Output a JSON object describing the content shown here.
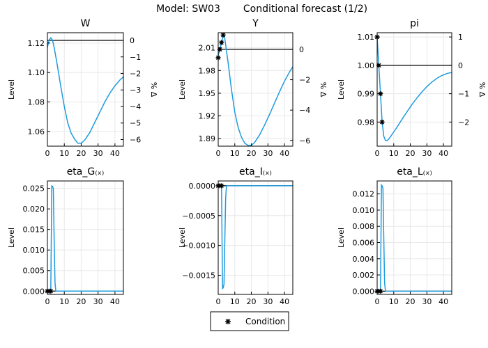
{
  "figure": {
    "model_label": "Model: SW03",
    "forecast_label": "Conditional forecast  (1/2)"
  },
  "legend": {
    "label": "Condition"
  },
  "colors": {
    "series": "#1f9bde",
    "condition": "#000000"
  },
  "chart_data": [
    {
      "type": "line",
      "title": "W",
      "ylabel": "Level",
      "y2label": "% Δ",
      "xlim": [
        0,
        45
      ],
      "ylim": [
        1.05,
        1.127
      ],
      "xticks": [
        0,
        10,
        20,
        30,
        40
      ],
      "yticks": [
        1.06,
        1.08,
        1.1,
        1.12
      ],
      "ytick_labels": [
        "1.06",
        "1.08",
        "1.10",
        "1.12"
      ],
      "y2ticks": [
        0,
        -1,
        -2,
        -3,
        -4,
        -5,
        -6
      ],
      "y2tick_labels": [
        "0",
        "−1",
        "−2",
        "−3",
        "−4",
        "−5",
        "−6"
      ],
      "zero_level": 1.1218,
      "pct_scale": 0.011218,
      "grid": true,
      "series": [
        {
          "x": [
            0,
            1,
            2,
            3,
            4,
            6,
            8,
            10,
            12,
            14,
            16,
            18,
            20,
            22,
            25,
            28,
            31,
            34,
            37,
            40,
            43,
            45
          ],
          "y": [
            1.117,
            1.122,
            1.1235,
            1.122,
            1.117,
            1.104,
            1.09,
            1.077,
            1.066,
            1.059,
            1.055,
            1.052,
            1.052,
            1.054,
            1.059,
            1.066,
            1.073,
            1.08,
            1.086,
            1.091,
            1.095,
            1.097
          ]
        }
      ],
      "conditions": []
    },
    {
      "type": "line",
      "title": "Y",
      "ylabel": "Level",
      "y2label": "% Δ",
      "xlim": [
        0,
        45
      ],
      "ylim": [
        1.88,
        2.03
      ],
      "xticks": [
        0,
        10,
        20,
        30,
        40
      ],
      "yticks": [
        1.89,
        1.92,
        1.95,
        1.98,
        2.01
      ],
      "ytick_labels": [
        "1.89",
        "1.92",
        "1.95",
        "1.98",
        "2.01"
      ],
      "y2ticks": [
        0,
        -2,
        -4,
        -6
      ],
      "y2tick_labels": [
        "0",
        "−2",
        "−4",
        "−6"
      ],
      "zero_level": 2.008,
      "pct_scale": 0.02008,
      "grid": true,
      "series": [
        {
          "x": [
            0,
            1,
            2,
            3,
            4,
            6,
            8,
            10,
            12,
            14,
            16,
            18,
            20,
            22,
            25,
            28,
            31,
            34,
            37,
            40,
            43,
            45
          ],
          "y": [
            2.0,
            2.008,
            2.017,
            2.027,
            2.022,
            1.99,
            1.955,
            1.925,
            1.905,
            1.892,
            1.884,
            1.881,
            1.881,
            1.885,
            1.895,
            1.908,
            1.922,
            1.937,
            1.952,
            1.966,
            1.978,
            1.985
          ]
        }
      ],
      "conditions": [
        {
          "x": [
            0,
            1,
            2,
            3
          ],
          "y": [
            1.997,
            2.008,
            2.017,
            2.027
          ]
        }
      ]
    },
    {
      "type": "line",
      "title": "pi",
      "ylabel": "Level",
      "y2label": "% Δ",
      "xlim": [
        0,
        45
      ],
      "ylim": [
        0.9715,
        1.0115
      ],
      "xticks": [
        0,
        10,
        20,
        30,
        40
      ],
      "yticks": [
        0.98,
        0.99,
        1.0,
        1.01
      ],
      "ytick_labels": [
        "0.98",
        "0.99",
        "1.00",
        "1.01"
      ],
      "y2ticks": [
        1,
        0,
        -1,
        -2
      ],
      "y2tick_labels": [
        "1",
        "0",
        "−1",
        "−2"
      ],
      "zero_level": 1.0,
      "pct_scale": 0.01,
      "grid": true,
      "series": [
        {
          "x": [
            0,
            1,
            2,
            3,
            4,
            5,
            6,
            7,
            8,
            10,
            12,
            15,
            18,
            21,
            24,
            27,
            30,
            33,
            36,
            39,
            42,
            45
          ],
          "y": [
            1.01,
            1.0,
            0.99,
            0.98,
            0.975,
            0.9735,
            0.9735,
            0.974,
            0.9748,
            0.9765,
            0.9782,
            0.981,
            0.9836,
            0.9862,
            0.9885,
            0.9906,
            0.9925,
            0.9941,
            0.9954,
            0.9964,
            0.9971,
            0.9975
          ]
        }
      ],
      "conditions": [
        {
          "x": [
            0,
            1,
            2,
            3
          ],
          "y": [
            1.01,
            1.0,
            0.99,
            0.98
          ]
        }
      ]
    },
    {
      "type": "line",
      "title": "eta_G₍ₓ₎",
      "ylabel": "Level",
      "xlim": [
        0,
        45
      ],
      "ylim": [
        -0.0008,
        0.0268
      ],
      "xticks": [
        0,
        10,
        20,
        30,
        40
      ],
      "yticks": [
        0.0,
        0.005,
        0.01,
        0.015,
        0.02,
        0.025
      ],
      "ytick_labels": [
        "0.000",
        "0.005",
        "0.010",
        "0.015",
        "0.020",
        "0.025"
      ],
      "zero_level": 0,
      "grid": true,
      "series": [
        {
          "x": [
            0,
            1,
            2,
            2.6,
            3,
            3.5,
            4,
            4.5,
            5,
            45
          ],
          "y": [
            0,
            0,
            0,
            0.0256,
            0.0255,
            0.025,
            0.0125,
            0.002,
            0,
            0
          ]
        }
      ],
      "conditions": [
        {
          "x": [
            0,
            1,
            2
          ],
          "y": [
            0,
            0,
            0
          ]
        }
      ]
    },
    {
      "type": "line",
      "title": "eta_I₍ₓ₎",
      "ylabel": "Level",
      "xlim": [
        0,
        45
      ],
      "ylim": [
        -0.00182,
        8e-05
      ],
      "xticks": [
        0,
        10,
        20,
        30,
        40
      ],
      "yticks": [
        0.0,
        -0.0005,
        -0.001,
        -0.0015
      ],
      "ytick_labels": [
        "0.0000",
        "−0.0005",
        "−0.0010",
        "−0.0015"
      ],
      "zero_level": 0,
      "grid": true,
      "series": [
        {
          "x": [
            0,
            1,
            2,
            2.6,
            3,
            3.5,
            4,
            4.5,
            5,
            45
          ],
          "y": [
            0,
            0,
            0,
            -0.00172,
            -0.00171,
            -0.00165,
            -0.0009,
            -0.0002,
            0,
            0
          ]
        }
      ],
      "conditions": [
        {
          "x": [
            0,
            1,
            2
          ],
          "y": [
            0,
            0,
            0
          ]
        }
      ]
    },
    {
      "type": "line",
      "title": "eta_L₍ₓ₎",
      "ylabel": "Level",
      "xlim": [
        0,
        45
      ],
      "ylim": [
        -0.0004,
        0.0136
      ],
      "xticks": [
        0,
        10,
        20,
        30,
        40
      ],
      "yticks": [
        0.0,
        0.002,
        0.004,
        0.006,
        0.008,
        0.01,
        0.012
      ],
      "ytick_labels": [
        "0.000",
        "0.002",
        "0.004",
        "0.006",
        "0.008",
        "0.010",
        "0.012"
      ],
      "zero_level": 0,
      "grid": true,
      "series": [
        {
          "x": [
            0,
            1,
            2,
            2.6,
            3,
            3.5,
            4,
            4.5,
            5,
            45
          ],
          "y": [
            0,
            0,
            0,
            0.0131,
            0.013,
            0.0127,
            0.0065,
            0.001,
            0,
            0
          ]
        }
      ],
      "conditions": [
        {
          "x": [
            0,
            1,
            2
          ],
          "y": [
            0,
            0,
            0
          ]
        }
      ]
    }
  ]
}
